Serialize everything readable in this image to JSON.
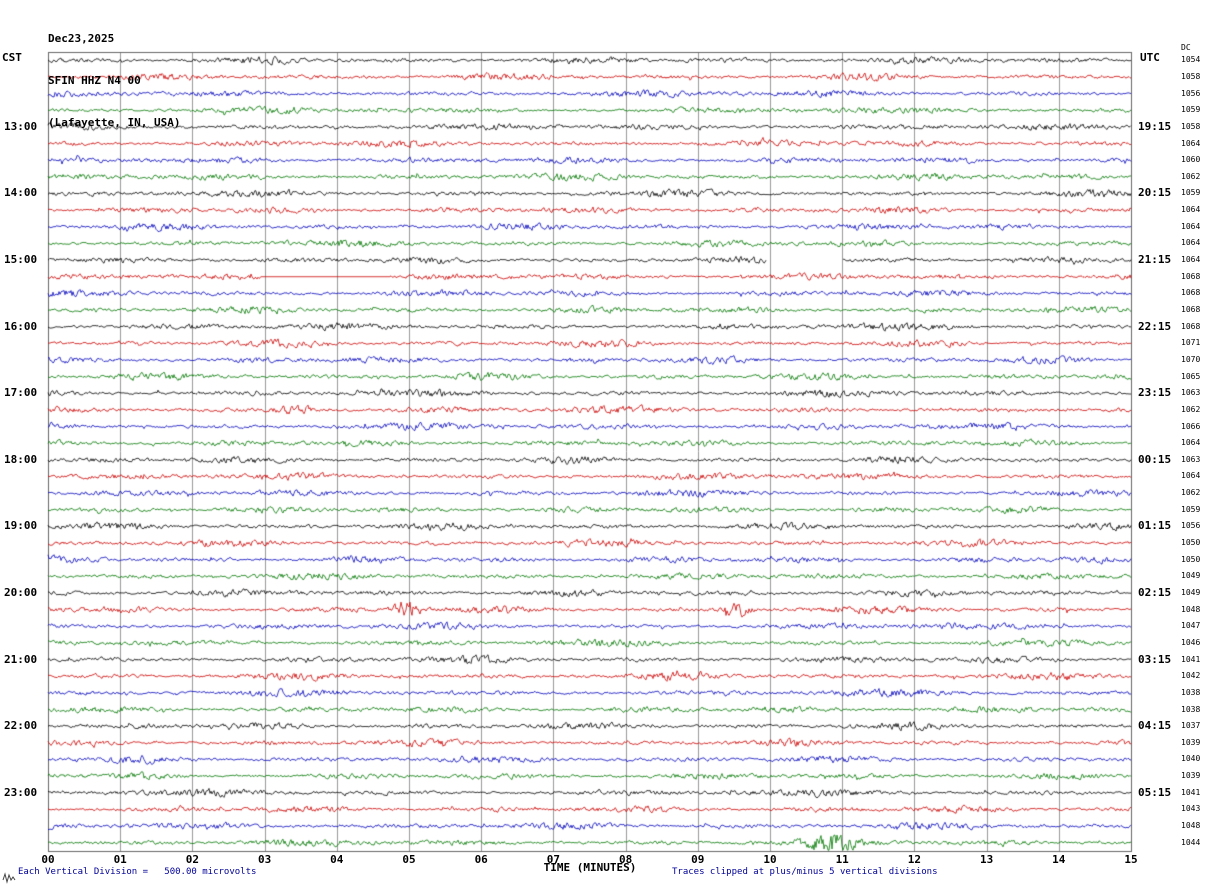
{
  "chart_data": {
    "type": "line",
    "subtype": "seismogram_helicorder",
    "date": "Dec23,2025",
    "station": "SFIN HHZ N4 00",
    "location": "(Lafayette, IN, USA)",
    "minutes_per_line": 15,
    "rows": 48,
    "row_colors_cycle": [
      "#000000",
      "#cc0000",
      "#0000bb",
      "#007700"
    ],
    "x_axis": {
      "label": "TIME (MINUTES)",
      "range": [
        0,
        15
      ],
      "ticks": [
        "00",
        "01",
        "02",
        "03",
        "04",
        "05",
        "06",
        "07",
        "08",
        "09",
        "10",
        "11",
        "12",
        "13",
        "14",
        "15"
      ]
    },
    "left_time_labels": {
      "timezone": "CST",
      "rows": [
        4,
        8,
        12,
        16,
        20,
        24,
        28,
        32,
        36,
        40,
        44
      ],
      "labels": [
        "13:00",
        "14:00",
        "15:00",
        "16:00",
        "17:00",
        "18:00",
        "19:00",
        "20:00",
        "21:00",
        "22:00",
        "23:00"
      ]
    },
    "right_time_labels": {
      "timezone": "UTC",
      "rows": [
        4,
        8,
        12,
        16,
        20,
        24,
        28,
        32,
        36,
        40,
        44
      ],
      "labels": [
        "19:15",
        "20:15",
        "21:15",
        "22:15",
        "23:15",
        "00:15",
        "01:15",
        "02:15",
        "03:15",
        "04:15",
        "05:15"
      ]
    },
    "dc_offsets": {
      "label": "DC",
      "values": [
        1054,
        1058,
        1056,
        1059,
        1058,
        1064,
        1060,
        1062,
        1059,
        1064,
        1064,
        1064,
        1064,
        1068,
        1068,
        1068,
        1068,
        1071,
        1070,
        1065,
        1063,
        1062,
        1066,
        1064,
        1063,
        1064,
        1062,
        1059,
        1056,
        1050,
        1050,
        1049,
        1049,
        1048,
        1047,
        1046,
        1041,
        1042,
        1038,
        1038,
        1037,
        1039,
        1040,
        1039,
        1041,
        1043,
        1048,
        1044
      ]
    },
    "scale": "Each Vertical Division =   500.00 microvolts",
    "clipping": "Traces clipped at plus/minus 5 vertical divisions",
    "events": [
      {
        "row": 12,
        "type": "gap",
        "start_min": 9.95,
        "end_min": 11.0
      },
      {
        "row": 13,
        "type": "flat",
        "start_min": 2.95,
        "end_min": 4.75
      },
      {
        "row": 21,
        "type": "burst",
        "center_min": 3.45,
        "width_min": 0.5,
        "amp": 3.5
      },
      {
        "row": 33,
        "type": "burst",
        "center_min": 4.95,
        "width_min": 0.4,
        "amp": 4.0
      },
      {
        "row": 33,
        "type": "burst",
        "center_min": 9.55,
        "width_min": 0.35,
        "amp": 4.0
      },
      {
        "row": 47,
        "type": "burst",
        "center_min": 10.9,
        "width_min": 0.6,
        "amp": 2.5
      }
    ]
  }
}
